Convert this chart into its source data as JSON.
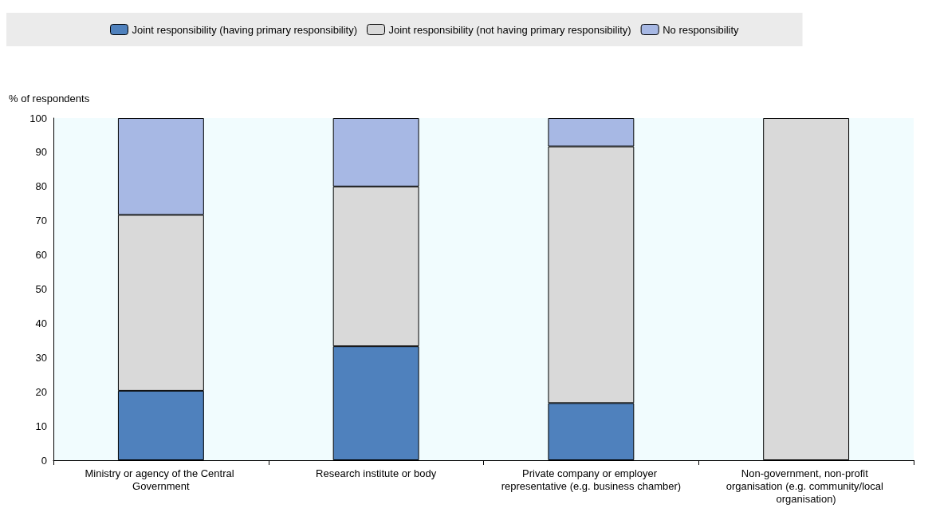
{
  "chart_data": {
    "type": "bar",
    "stacked": true,
    "ylabel": "% of respondents",
    "categories": [
      "Ministry or agency of the Central Government",
      "Research institute or body",
      "Private company or employer representative (e.g. business chamber)",
      "Non-government, non-profit organisation (e.g. community/local organisation)"
    ],
    "series": [
      {
        "name": "Joint responsibility (having primary responsibility)",
        "color": "#4f81bd",
        "values": [
          20.3,
          33.3,
          16.7,
          0
        ]
      },
      {
        "name": "Joint responsibility (not having primary responsibility)",
        "color": "#d9d9d9",
        "values": [
          51.4,
          46.7,
          75,
          100
        ]
      },
      {
        "name": "No responsibility",
        "color": "#a7b8e4",
        "values": [
          28.3,
          20,
          8.3,
          0
        ]
      }
    ],
    "ylim": [
      0,
      100
    ],
    "yticks": [
      0,
      10,
      20,
      30,
      40,
      50,
      60,
      70,
      80,
      90,
      100
    ],
    "grid": false,
    "legend": "top"
  }
}
